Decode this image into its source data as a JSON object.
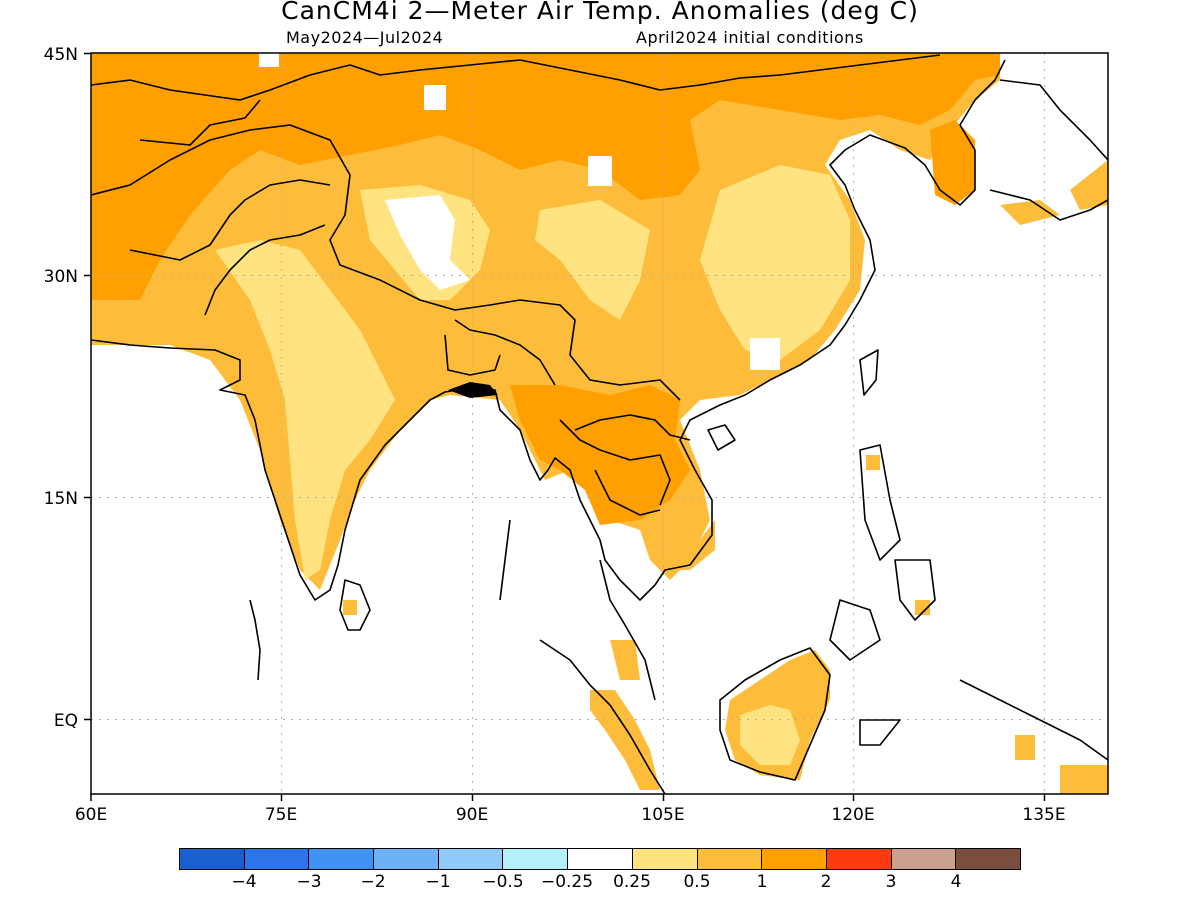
{
  "title": "CanCM4i 2—Meter Air Temp. Anomalies (deg C)",
  "subtitle_left": "May2024—Jul2024",
  "subtitle_right": "April2024 initial conditions",
  "map": {
    "lon_range": [
      60,
      140
    ],
    "lat_range": [
      -5,
      45
    ],
    "lon_ticks": [
      "60E",
      "75E",
      "90E",
      "105E",
      "120E",
      "135E"
    ],
    "lat_ticks": [
      "45N",
      "30N",
      "15N",
      "EQ"
    ],
    "gridlines": true
  },
  "legend": {
    "colors": [
      "#1a5fd0",
      "#2b74ea",
      "#3f93f2",
      "#6db2f6",
      "#8ecbfa",
      "#b4f0fa",
      "#ffffff",
      "#ffe381",
      "#fdbd3a",
      "#ff9f00",
      "#ff3a10",
      "#caa08e",
      "#7a4d3d"
    ],
    "labels": [
      "−4",
      "−3",
      "−2",
      "−1",
      "−0.5",
      "−0.25",
      "0.25",
      "0.5",
      "1",
      "2",
      "3",
      "4"
    ]
  },
  "palette": {
    "pale": "#ffe381",
    "light": "#fdbd3a",
    "strong": "#ff9f00"
  }
}
